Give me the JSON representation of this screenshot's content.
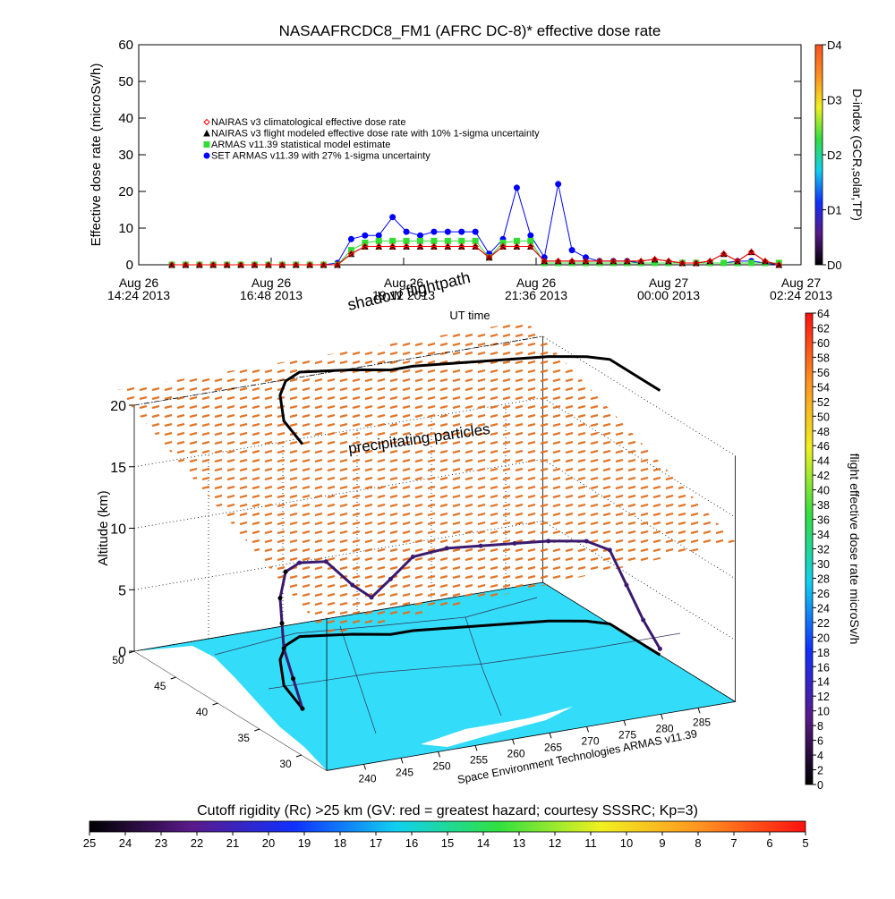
{
  "chart_data": [
    {
      "type": "line",
      "title": "NASAAFRCDC8_FM1 (AFRC DC-8)* effective dose rate",
      "ylabel": "Effective dose rate (microSv/h)",
      "xlabel": "UT time",
      "ylim": [
        0,
        60
      ],
      "yticks": [
        0,
        10,
        20,
        30,
        40,
        50,
        60
      ],
      "xlim": [
        "2013-08-26 14:24",
        "2013-08-27 02:24"
      ],
      "xticks": [
        {
          "value": "2013-08-26 14:24",
          "label": "Aug 26\n14:24 2013"
        },
        {
          "value": "2013-08-26 16:48",
          "label": "Aug 26\n16:48 2013"
        },
        {
          "value": "2013-08-26 19:12",
          "label": "Aug 26\n19:12 2013"
        },
        {
          "value": "2013-08-26 21:36",
          "label": "Aug 26\n21:36 2013"
        },
        {
          "value": "2013-08-27 00:00",
          "label": "Aug 27\n00:00 2013"
        },
        {
          "value": "2013-08-27 02:24",
          "label": "Aug 27\n02:24 2013"
        }
      ],
      "legend": "upper left",
      "x": [
        "2013-08-26 15:00",
        "2013-08-26 15:15",
        "2013-08-26 15:30",
        "2013-08-26 15:45",
        "2013-08-26 16:00",
        "2013-08-26 16:15",
        "2013-08-26 16:30",
        "2013-08-26 16:45",
        "2013-08-26 17:00",
        "2013-08-26 17:15",
        "2013-08-26 17:30",
        "2013-08-26 17:45",
        "2013-08-26 18:00",
        "2013-08-26 18:15",
        "2013-08-26 18:30",
        "2013-08-26 18:45",
        "2013-08-26 19:00",
        "2013-08-26 19:15",
        "2013-08-26 19:30",
        "2013-08-26 19:45",
        "2013-08-26 20:00",
        "2013-08-26 20:15",
        "2013-08-26 20:30",
        "2013-08-26 20:45",
        "2013-08-26 21:00",
        "2013-08-26 21:15",
        "2013-08-26 21:30",
        "2013-08-26 21:45",
        "2013-08-26 22:00",
        "2013-08-26 22:15",
        "2013-08-26 22:30",
        "2013-08-26 22:45",
        "2013-08-26 23:00",
        "2013-08-26 23:15",
        "2013-08-26 23:30",
        "2013-08-26 23:45",
        "2013-08-27 00:00",
        "2013-08-27 00:15",
        "2013-08-27 00:30",
        "2013-08-27 00:45",
        "2013-08-27 01:00",
        "2013-08-27 01:15",
        "2013-08-27 01:30",
        "2013-08-27 01:45",
        "2013-08-27 02:00"
      ],
      "series": [
        {
          "name": "NAIRAS v3 climatological effective dose rate",
          "color": "#ff0000",
          "marker": "diamond",
          "values": [
            0,
            0,
            0,
            0,
            0,
            0,
            0,
            0,
            0,
            0,
            0,
            0,
            0,
            3,
            5,
            5,
            5,
            5,
            5,
            5,
            5,
            5,
            5,
            2,
            5,
            5,
            5,
            1,
            1,
            1,
            1,
            1,
            1,
            1,
            1,
            1.5,
            1,
            0.5,
            0.5,
            1,
            3,
            1,
            3.5,
            1,
            0
          ]
        },
        {
          "name": "NAIRAS v3 flight modeled effective dose rate with 10% 1-sigma uncertainty",
          "color": "#000000",
          "marker": "triangle",
          "values": [
            0,
            0,
            0,
            0,
            0,
            0,
            0,
            0,
            0,
            0,
            0,
            0,
            0,
            3,
            5,
            5,
            5,
            5,
            5,
            5,
            5,
            5,
            5,
            2,
            5,
            5,
            5,
            1,
            1,
            1,
            1,
            1,
            1,
            1,
            1,
            1.5,
            1,
            0.5,
            0.5,
            1,
            3,
            1,
            3.5,
            1,
            0
          ]
        },
        {
          "name": "ARMAS v11.39 statistical model estimate",
          "color": "#33dd33",
          "marker": "square",
          "values": [
            0,
            0,
            0,
            0,
            0,
            0,
            0,
            0,
            0,
            0,
            0,
            0,
            0,
            4,
            6,
            6.5,
            6.5,
            6.5,
            6.5,
            6.5,
            6.5,
            6.5,
            6.5,
            2,
            6,
            6.5,
            6.5,
            0.5,
            0.5,
            0.5,
            0.5,
            0.5,
            0.5,
            0.5,
            0.5,
            0.5,
            0.5,
            0.5,
            0.5,
            0.5,
            0.5,
            0.5,
            0.5,
            0.5,
            0.5
          ]
        },
        {
          "name": "SET ARMAS v11.39 with 27% 1-sigma uncertainty",
          "color": "#0000ff",
          "marker": "circle",
          "values": [
            0,
            0,
            0,
            0,
            0,
            0,
            0,
            0,
            0,
            0,
            0,
            0,
            0.5,
            7,
            8,
            8,
            13,
            9,
            8,
            9,
            9,
            9,
            9,
            3,
            7,
            21,
            8,
            2,
            22,
            4,
            2,
            1,
            1,
            1,
            0.5,
            0.5,
            0.5,
            0.5,
            0.5,
            0.5,
            0.5,
            1,
            1,
            0.5,
            0
          ]
        }
      ]
    },
    {
      "type": "colorbar",
      "orientation": "vertical",
      "label": "D-index (GCR,solar,TP)",
      "lim": [
        0,
        4
      ],
      "ticks": [
        {
          "value": 0,
          "label": "D0"
        },
        {
          "value": 1,
          "label": "D1"
        },
        {
          "value": 2,
          "label": "D2"
        },
        {
          "value": 3,
          "label": "D3"
        },
        {
          "value": 4,
          "label": "D4"
        }
      ],
      "colormap": [
        "#000000",
        "#5a1a8a",
        "#1030ff",
        "#10d0f0",
        "#30e040",
        "#f0f020",
        "#ff9020",
        "#ff5020"
      ]
    },
    {
      "type": "path3d",
      "zlabel": "Altitude (km)",
      "zlim": [
        0,
        20
      ],
      "zticks": [
        0,
        5,
        10,
        15,
        20
      ],
      "latlim": [
        27,
        50
      ],
      "latticks": [
        30,
        35,
        40,
        45,
        50
      ],
      "lonlim": [
        235,
        290
      ],
      "lonticks": [
        240,
        245,
        250,
        255,
        260,
        265,
        270,
        275,
        280,
        285
      ],
      "annotations": [
        "shadow flightpath",
        "precipitating particles"
      ],
      "credit": "Space Environment Technologies ARMAS v11.39",
      "color": "#3a1a6e",
      "path": {
        "lon": [
          243,
          244,
          245,
          247,
          249,
          252,
          255,
          258,
          261,
          263,
          265,
          268,
          272,
          276,
          280,
          284,
          288,
          290,
          290,
          290,
          290
        ],
        "lat": [
          37,
          39,
          41,
          43,
          45,
          47,
          48,
          47.5,
          47,
          46.5,
          46,
          46,
          45.5,
          45,
          44.5,
          44,
          43,
          42,
          40,
          38,
          36
        ],
        "alt": [
          0,
          1.5,
          3,
          4,
          5,
          6,
          6,
          6,
          4,
          3,
          4.5,
          6,
          6.5,
          6.5,
          6.5,
          6.5,
          6.5,
          6,
          4,
          2,
          0.5
        ]
      }
    },
    {
      "type": "colorbar",
      "orientation": "vertical",
      "label": "flight effective dose rate microSv/h",
      "lim": [
        0,
        64
      ],
      "ticks": [
        0,
        2,
        4,
        6,
        8,
        10,
        12,
        14,
        16,
        18,
        20,
        22,
        24,
        26,
        28,
        30,
        32,
        34,
        36,
        38,
        40,
        42,
        44,
        46,
        48,
        50,
        52,
        54,
        56,
        58,
        60,
        62,
        64
      ],
      "colormap": [
        "#000000",
        "#5a1a8a",
        "#1030ff",
        "#10d0f0",
        "#30e040",
        "#f0f020",
        "#ff9020",
        "#ff1010"
      ]
    },
    {
      "type": "colorbar",
      "orientation": "horizontal",
      "label": "Cutoff rigidity (Rc) >25 km (GV: red = greatest hazard; courtesy SSSRC; Kp=3)",
      "lim": [
        25,
        5
      ],
      "ticks": [
        25,
        24,
        23,
        22,
        21,
        20,
        19,
        18,
        17,
        16,
        15,
        14,
        13,
        12,
        11,
        10,
        9,
        8,
        7,
        6,
        5
      ],
      "colormap": [
        "#000000",
        "#5a1a8a",
        "#1030ff",
        "#10d0f0",
        "#30e040",
        "#f0f020",
        "#ff9020",
        "#ff1010"
      ]
    }
  ]
}
